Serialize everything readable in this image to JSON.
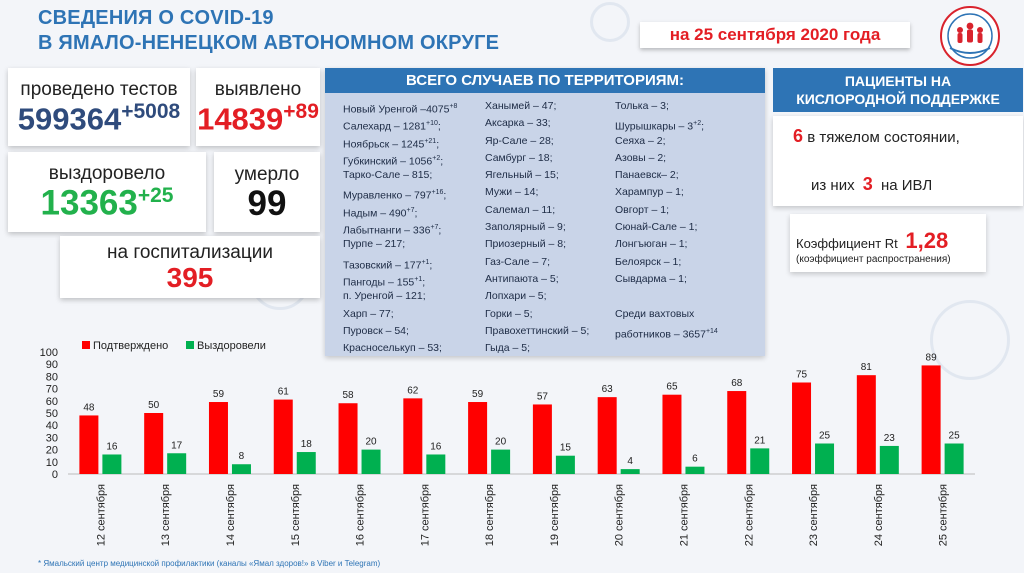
{
  "header": {
    "title_line1": "СВЕДЕНИЯ О COVID-19",
    "title_line2": "В ЯМАЛО-НЕНЕЦКОМ АВТОНОМНОМ ОКРУГЕ",
    "date": "на 25 сентября 2020 года",
    "logo": "yamal-zdorov-logo"
  },
  "stats": {
    "tests_label": "проведено тестов",
    "tests_value": "599364",
    "tests_delta": "+5008",
    "found_label": "выявлено",
    "found_value": "14839",
    "found_delta": "+89",
    "recovered_label": "выздоровело",
    "recovered_value": "13363",
    "recovered_delta": "+25",
    "died_label": "умерло",
    "died_value": "99",
    "hosp_label": "на госпитализации",
    "hosp_value": "395"
  },
  "territories": {
    "heading": "ВСЕГО СЛУЧАЕВ ПО ТЕРРИТОРИЯМ:",
    "col1": [
      {
        "text": "Новый Уренгой –4075",
        "sup": "+8"
      },
      {
        "text": "Салехард – 1281",
        "sup": "+10",
        "tail": ";"
      },
      {
        "text": "Ноябрьск – 1245",
        "sup": "+21",
        "tail": ";"
      },
      {
        "text": "Губкинский – 1056",
        "sup": "+2",
        "tail": ";"
      },
      {
        "text": "Тарко-Сале – 815;"
      },
      {
        "text": "Муравленко – 797",
        "sup": "+16",
        "tail": ";"
      },
      {
        "text": "Надым – 490",
        "sup": "+7",
        "tail": ";"
      },
      {
        "text": "Лабытнанги – 336",
        "sup": "+7",
        "tail": ";"
      },
      {
        "text": "Пурпе – 217;"
      },
      {
        "text": "Тазовский – 177",
        "sup": "+1",
        "tail": ";"
      },
      {
        "text": "Пангоды – 155",
        "sup": "+1",
        "tail": ";"
      },
      {
        "text": "п. Уренгой – 121;"
      },
      {
        "text": "Харп – 77;"
      },
      {
        "text": "Пуровск – 54;"
      },
      {
        "text": "Красноселькуп – 53;"
      }
    ],
    "col2": [
      {
        "text": "Ханымей – 47;"
      },
      {
        "text": "Аксарка – 33;"
      },
      {
        "text": "Яр-Сале – 28;"
      },
      {
        "text": "Самбург – 18;"
      },
      {
        "text": "Ягельный – 15;"
      },
      {
        "text": "Мужи – 14;"
      },
      {
        "text": "Салемал – 11;"
      },
      {
        "text": "Заполярный – 9;"
      },
      {
        "text": "Приозерный – 8;"
      },
      {
        "text": "Газ-Сале – 7;"
      },
      {
        "text": "Антипаюта – 5;"
      },
      {
        "text": "Лопхари – 5;"
      },
      {
        "text": "Горки – 5;"
      },
      {
        "text": "Правохеттинский – 5;"
      },
      {
        "text": "Гыда – 5;"
      }
    ],
    "col3": [
      {
        "text": "Толька – 3;"
      },
      {
        "text": "Шурышкары – 3",
        "sup": "+2",
        "tail": ";"
      },
      {
        "text": "Сеяха – 2;"
      },
      {
        "text": "Азовы – 2;"
      },
      {
        "text": "Панаевск– 2;"
      },
      {
        "text": "Харампур – 1;"
      },
      {
        "text": "Овгорт – 1;"
      },
      {
        "text": "Сюнай-Сале – 1;"
      },
      {
        "text": "Лонгъюган – 1;"
      },
      {
        "text": "Белоярск – 1;"
      },
      {
        "text": "Сывдарма – 1;"
      },
      {
        "text": ""
      },
      {
        "text": "Среди вахтовых"
      },
      {
        "text": "работников – 3657",
        "sup": "+14"
      },
      {
        "text": ""
      }
    ]
  },
  "oxygen": {
    "heading_line1": "ПАЦИЕНТЫ НА",
    "heading_line2": "КИСЛОРОДНОЙ ПОДДЕРЖКЕ",
    "severe_num": "6",
    "severe_text": "в тяжелом состоянии,",
    "ivl_pre": "из них",
    "ivl_num": "3",
    "ivl_post": "на  ИВЛ",
    "rt_label": "Коэффициент Rt",
    "rt_value": "1,28",
    "rt_note": "(коэффициент распространения)"
  },
  "chart_data": {
    "type": "bar",
    "categories": [
      "12 сентября",
      "13 сентября",
      "14 сентября",
      "15 сентября",
      "16 сентября",
      "17 сентября",
      "18 сентября",
      "19 сентября",
      "20 сентября",
      "21 сентября",
      "22 сентября",
      "23 сентября",
      "24 сентября",
      "25 сентября"
    ],
    "series": [
      {
        "name": "Подтверждено",
        "color": "#ff0000",
        "values": [
          48,
          50,
          59,
          61,
          58,
          62,
          59,
          57,
          63,
          65,
          68,
          75,
          81,
          89
        ]
      },
      {
        "name": "Выздоровели",
        "color": "#00b050",
        "values": [
          16,
          17,
          8,
          18,
          20,
          16,
          20,
          15,
          4,
          6,
          21,
          25,
          23,
          25
        ]
      }
    ],
    "ylim": [
      0,
      100
    ],
    "yticks": [
      0,
      10,
      20,
      30,
      40,
      50,
      60,
      70,
      80,
      90,
      100
    ],
    "legend": "top-left"
  },
  "footnote": "* Ямальский центр медицинской профилактики (каналы «Ямал здоров!» в Viber  и Telegram)"
}
